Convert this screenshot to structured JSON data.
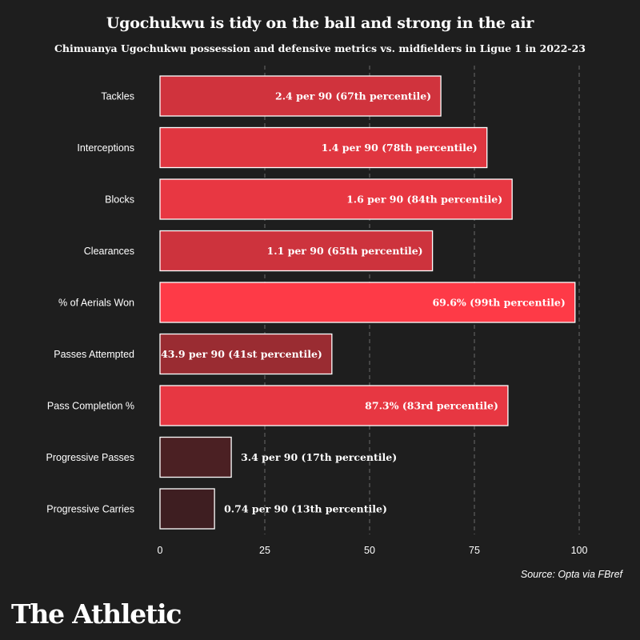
{
  "header": {
    "title": "Ugochukwu is tidy on the ball and strong in the air",
    "subtitle": "Chimuanya Ugochukwu possession and defensive metrics vs. midfielders in Ligue 1 in 2022-23"
  },
  "footer": {
    "source": "Source: Opta via FBref",
    "brand": "The Athletic"
  },
  "chart_data": {
    "type": "bar",
    "orientation": "horizontal",
    "title": "Ugochukwu is tidy on the ball and strong in the air",
    "subtitle": "Chimuanya Ugochukwu possession and defensive metrics vs. midfielders in Ligue 1 in 2022-23",
    "xlabel": "",
    "ylabel": "",
    "xlim": [
      0,
      100
    ],
    "xticks": [
      0,
      25,
      50,
      75,
      100
    ],
    "grid": "vertical dashed",
    "categories": [
      "Tackles",
      "Interceptions",
      "Blocks",
      "Clearances",
      "% of Aerials Won",
      "Passes Attempted",
      "Pass Completion %",
      "Progressive Passes",
      "Progressive Carries"
    ],
    "values": [
      67,
      78,
      84,
      65,
      99,
      41,
      83,
      17,
      13
    ],
    "data_labels": [
      "2.4 per 90 (67th percentile)",
      "1.4 per 90 (78th percentile)",
      "1.6 per 90 (84th percentile)",
      "1.1 per 90 (65th percentile)",
      "69.6% (99th percentile)",
      "43.9 per 90 (41st percentile)",
      "87.3% (83rd percentile)",
      "3.4 per 90 (17th percentile)",
      "0.74 per 90 (13th percentile)"
    ],
    "colors": {
      "low": "#341c1f",
      "mid": "#b83038",
      "high": "#ff3a47",
      "bar_stroke": "#ffffff",
      "grid": "#6a6a6a",
      "background": "#1e1e1e",
      "text": "#ffffff"
    }
  }
}
